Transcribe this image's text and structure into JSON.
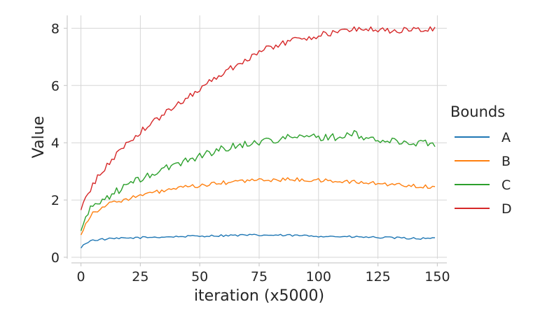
{
  "chart_data": {
    "type": "line",
    "title": "",
    "xlabel": "iteration (x5000)",
    "ylabel": "Value",
    "xlim": [
      -4,
      154
    ],
    "ylim": [
      -0.05,
      8.45
    ],
    "xticks": [
      0,
      25,
      50,
      75,
      100,
      125,
      150
    ],
    "yticks": [
      0,
      2,
      4,
      6,
      8
    ],
    "grid": true,
    "legend": {
      "title": "Bounds",
      "placement": "right"
    },
    "x_start": 0,
    "x_end": 149,
    "series": [
      {
        "name": "A",
        "color": "#1f77b4",
        "anchors": [
          [
            0,
            0.32
          ],
          [
            2,
            0.5
          ],
          [
            5,
            0.6
          ],
          [
            10,
            0.63
          ],
          [
            20,
            0.67
          ],
          [
            30,
            0.7
          ],
          [
            40,
            0.72
          ],
          [
            50,
            0.74
          ],
          [
            60,
            0.76
          ],
          [
            70,
            0.77
          ],
          [
            80,
            0.77
          ],
          [
            90,
            0.76
          ],
          [
            100,
            0.74
          ],
          [
            110,
            0.72
          ],
          [
            120,
            0.7
          ],
          [
            130,
            0.68
          ],
          [
            140,
            0.66
          ],
          [
            149,
            0.65
          ]
        ],
        "noise": 0.035
      },
      {
        "name": "B",
        "color": "#ff7f0e",
        "anchors": [
          [
            0,
            0.78
          ],
          [
            2,
            1.2
          ],
          [
            5,
            1.55
          ],
          [
            10,
            1.8
          ],
          [
            15,
            1.95
          ],
          [
            20,
            2.05
          ],
          [
            30,
            2.25
          ],
          [
            40,
            2.4
          ],
          [
            50,
            2.5
          ],
          [
            60,
            2.6
          ],
          [
            70,
            2.68
          ],
          [
            80,
            2.7
          ],
          [
            90,
            2.72
          ],
          [
            100,
            2.68
          ],
          [
            110,
            2.65
          ],
          [
            120,
            2.6
          ],
          [
            130,
            2.55
          ],
          [
            140,
            2.5
          ],
          [
            149,
            2.45
          ]
        ],
        "noise": 0.07
      },
      {
        "name": "C",
        "color": "#2ca02c",
        "anchors": [
          [
            0,
            0.92
          ],
          [
            2,
            1.4
          ],
          [
            5,
            1.8
          ],
          [
            10,
            2.05
          ],
          [
            15,
            2.3
          ],
          [
            20,
            2.55
          ],
          [
            30,
            2.9
          ],
          [
            40,
            3.25
          ],
          [
            50,
            3.55
          ],
          [
            60,
            3.8
          ],
          [
            70,
            3.97
          ],
          [
            80,
            4.1
          ],
          [
            90,
            4.2
          ],
          [
            100,
            4.2
          ],
          [
            110,
            4.2
          ],
          [
            115,
            4.3
          ],
          [
            120,
            4.15
          ],
          [
            130,
            4.05
          ],
          [
            140,
            4.0
          ],
          [
            149,
            3.98
          ]
        ],
        "noise": 0.13
      },
      {
        "name": "D",
        "color": "#d62728",
        "anchors": [
          [
            0,
            1.65
          ],
          [
            2,
            2.05
          ],
          [
            5,
            2.55
          ],
          [
            10,
            3.1
          ],
          [
            15,
            3.6
          ],
          [
            20,
            4.05
          ],
          [
            30,
            4.7
          ],
          [
            40,
            5.3
          ],
          [
            50,
            5.9
          ],
          [
            60,
            6.45
          ],
          [
            70,
            6.95
          ],
          [
            80,
            7.35
          ],
          [
            90,
            7.6
          ],
          [
            100,
            7.75
          ],
          [
            110,
            7.9
          ],
          [
            118,
            8.0
          ],
          [
            125,
            7.95
          ],
          [
            130,
            7.9
          ],
          [
            140,
            7.95
          ],
          [
            149,
            7.95
          ]
        ],
        "noise": 0.11
      }
    ]
  }
}
